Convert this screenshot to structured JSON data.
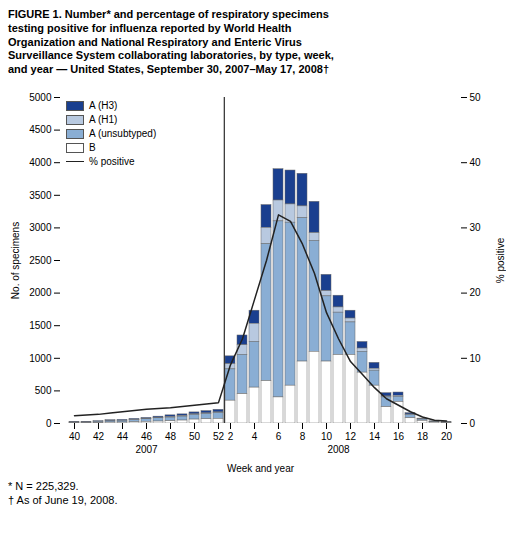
{
  "chart_data": {
    "type": "bar",
    "stacked": true,
    "title": "FIGURE 1. Number* and percentage of respiratory specimens\ntesting positive for influenza reported by World Health\nOrganization and National Respiratory and Enteric Virus\nSurveillance System collaborating laboratories, by type, week,\nand year — United States, September 30, 2007–May 17, 2008†",
    "footnotes": [
      "* N = 225,329.",
      "† As of June 19, 2008."
    ],
    "x_label": "Week and year",
    "y_label": "No. of specimens",
    "y2_label": "% positive",
    "categories": [
      "40",
      null,
      "42",
      null,
      "44",
      null,
      "46",
      null,
      "48",
      null,
      "50",
      null,
      "52",
      "2",
      null,
      "4",
      null,
      "6",
      null,
      "8",
      null,
      "10",
      null,
      "12",
      null,
      "14",
      null,
      "16",
      null,
      "18",
      null,
      "20"
    ],
    "annotations": [
      {
        "text": "2007"
      },
      {
        "text": "2008"
      }
    ],
    "series": [
      {
        "name": "A (H3)",
        "color": "#1a3f8f",
        "values": [
          10,
          10,
          10,
          15,
          15,
          15,
          15,
          20,
          25,
          25,
          30,
          35,
          40,
          120,
          150,
          200,
          350,
          480,
          520,
          500,
          480,
          250,
          180,
          120,
          100,
          90,
          50,
          50,
          20,
          10,
          5,
          5
        ]
      },
      {
        "name": "A (H1)",
        "color": "#b8c9e0",
        "values": [
          0,
          0,
          0,
          0,
          0,
          5,
          5,
          5,
          10,
          10,
          10,
          10,
          10,
          80,
          150,
          280,
          250,
          320,
          280,
          180,
          120,
          80,
          80,
          60,
          50,
          30,
          15,
          15,
          8,
          5,
          3,
          0
        ]
      },
      {
        "name": "A (unsubtyped)",
        "color": "#8aaed4",
        "values": [
          10,
          10,
          15,
          20,
          25,
          30,
          40,
          50,
          55,
          60,
          70,
          80,
          90,
          480,
          600,
          700,
          2100,
          2700,
          2500,
          2200,
          1700,
          1000,
          650,
          500,
          320,
          230,
          150,
          80,
          50,
          20,
          10,
          8
        ]
      },
      {
        "name": "B",
        "color": "#ffffff",
        "values": [
          5,
          5,
          10,
          15,
          15,
          20,
          25,
          30,
          35,
          45,
          60,
          65,
          70,
          350,
          450,
          550,
          650,
          400,
          580,
          950,
          1100,
          950,
          1050,
          1050,
          780,
          580,
          250,
          330,
          80,
          40,
          15,
          8
        ]
      },
      {
        "name": "% positive",
        "type": "line",
        "axis": "y2",
        "color": "#222222",
        "values": [
          1.2,
          1.3,
          1.4,
          1.6,
          1.8,
          2.0,
          2.2,
          2.3,
          2.4,
          2.6,
          2.8,
          3.0,
          3.2,
          9.0,
          13.0,
          19.0,
          25.0,
          32.0,
          31.0,
          27.5,
          23.0,
          17.0,
          13.0,
          9.5,
          7.5,
          5.5,
          3.8,
          2.8,
          1.8,
          1.0,
          0.5,
          0.4
        ]
      }
    ],
    "ylim": [
      0,
      5000
    ],
    "yticks": [
      0,
      500,
      1000,
      1500,
      2000,
      2500,
      3000,
      3500,
      4000,
      4500,
      5000
    ],
    "y2lim": [
      0,
      50
    ],
    "y2ticks": [
      0,
      10,
      20,
      30,
      40,
      50
    ],
    "legend": "upper left",
    "grid": false
  }
}
